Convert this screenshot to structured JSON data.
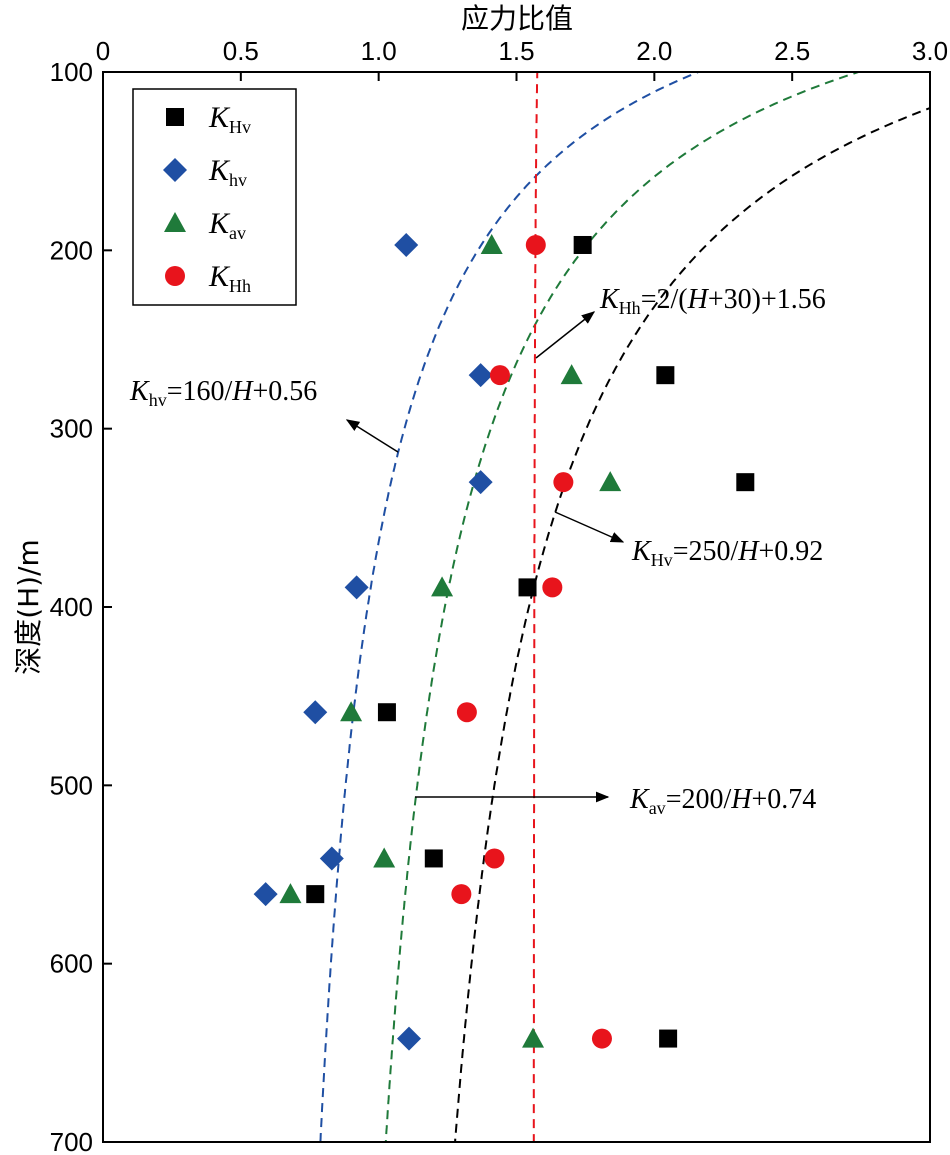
{
  "chart_data": {
    "type": "scatter",
    "title": "",
    "xlabel": "应力比值",
    "ylabel": "深度(H)/m",
    "xlim": [
      0,
      3.0
    ],
    "ylim": [
      100,
      700
    ],
    "y_inverted": true,
    "x_axis_position": "top",
    "x_ticks": [
      "0",
      "0.5",
      "1.0",
      "1.5",
      "2.0",
      "2.5",
      "3.0"
    ],
    "y_ticks": [
      "100",
      "200",
      "300",
      "400",
      "500",
      "600",
      "700"
    ],
    "legend_position": "top-left",
    "series": [
      {
        "name": "K_Hv",
        "label_main": "K",
        "label_sub": "Hv",
        "marker": "square",
        "color": "#000000",
        "points": [
          [
            1.74,
            197
          ],
          [
            2.04,
            270
          ],
          [
            2.33,
            330
          ],
          [
            1.54,
            389
          ],
          [
            1.03,
            459
          ],
          [
            1.2,
            541
          ],
          [
            0.77,
            561
          ],
          [
            2.05,
            642
          ]
        ]
      },
      {
        "name": "K_hv",
        "label_main": "K",
        "label_sub": "hv",
        "marker": "diamond",
        "color": "#1f4fa3",
        "points": [
          [
            1.1,
            197
          ],
          [
            1.37,
            270
          ],
          [
            1.37,
            330
          ],
          [
            0.92,
            389
          ],
          [
            0.77,
            459
          ],
          [
            0.83,
            541
          ],
          [
            0.59,
            561
          ],
          [
            1.11,
            642
          ]
        ]
      },
      {
        "name": "K_av",
        "label_main": "K",
        "label_sub": "av",
        "marker": "triangle",
        "color": "#1f7a3a",
        "points": [
          [
            1.41,
            197
          ],
          [
            1.7,
            270
          ],
          [
            1.84,
            330
          ],
          [
            1.23,
            389
          ],
          [
            0.9,
            459
          ],
          [
            1.02,
            541
          ],
          [
            0.68,
            561
          ],
          [
            1.56,
            642
          ]
        ]
      },
      {
        "name": "K_Hh",
        "label_main": "K",
        "label_sub": "Hh",
        "marker": "circle",
        "color": "#e8141c",
        "points": [
          [
            1.57,
            197
          ],
          [
            1.44,
            270
          ],
          [
            1.67,
            330
          ],
          [
            1.63,
            389
          ],
          [
            1.32,
            459
          ],
          [
            1.42,
            541
          ],
          [
            1.3,
            561
          ],
          [
            1.81,
            642
          ]
        ]
      }
    ],
    "fit_curves": [
      {
        "name": "K_hv fit",
        "color": "#1f4fa3",
        "a": 160,
        "b": 0.56,
        "c": 0,
        "label_main": "K",
        "label_sub": "hv",
        "label_rest": "=160/",
        "label_var": "H",
        "label_tail": "+0.56"
      },
      {
        "name": "K_av fit",
        "color": "#1f7a3a",
        "a": 200,
        "b": 0.74,
        "c": 0,
        "label_main": "K",
        "label_sub": "av",
        "label_rest": "=200/",
        "label_var": "H",
        "label_tail": "+0.74"
      },
      {
        "name": "K_Hv fit",
        "color": "#000000",
        "a": 250,
        "b": 0.92,
        "c": 0,
        "label_main": "K",
        "label_sub": "Hv",
        "label_rest": "=250/",
        "label_var": "H",
        "label_tail": "+0.92"
      },
      {
        "name": "K_Hh fit",
        "color": "#e8141c",
        "a": 2,
        "b": 1.56,
        "c": 30,
        "label_main": "K",
        "label_sub": "Hh",
        "label_rest": "=2/(",
        "label_var": "H",
        "label_tail": "+30)+1.56"
      }
    ]
  }
}
